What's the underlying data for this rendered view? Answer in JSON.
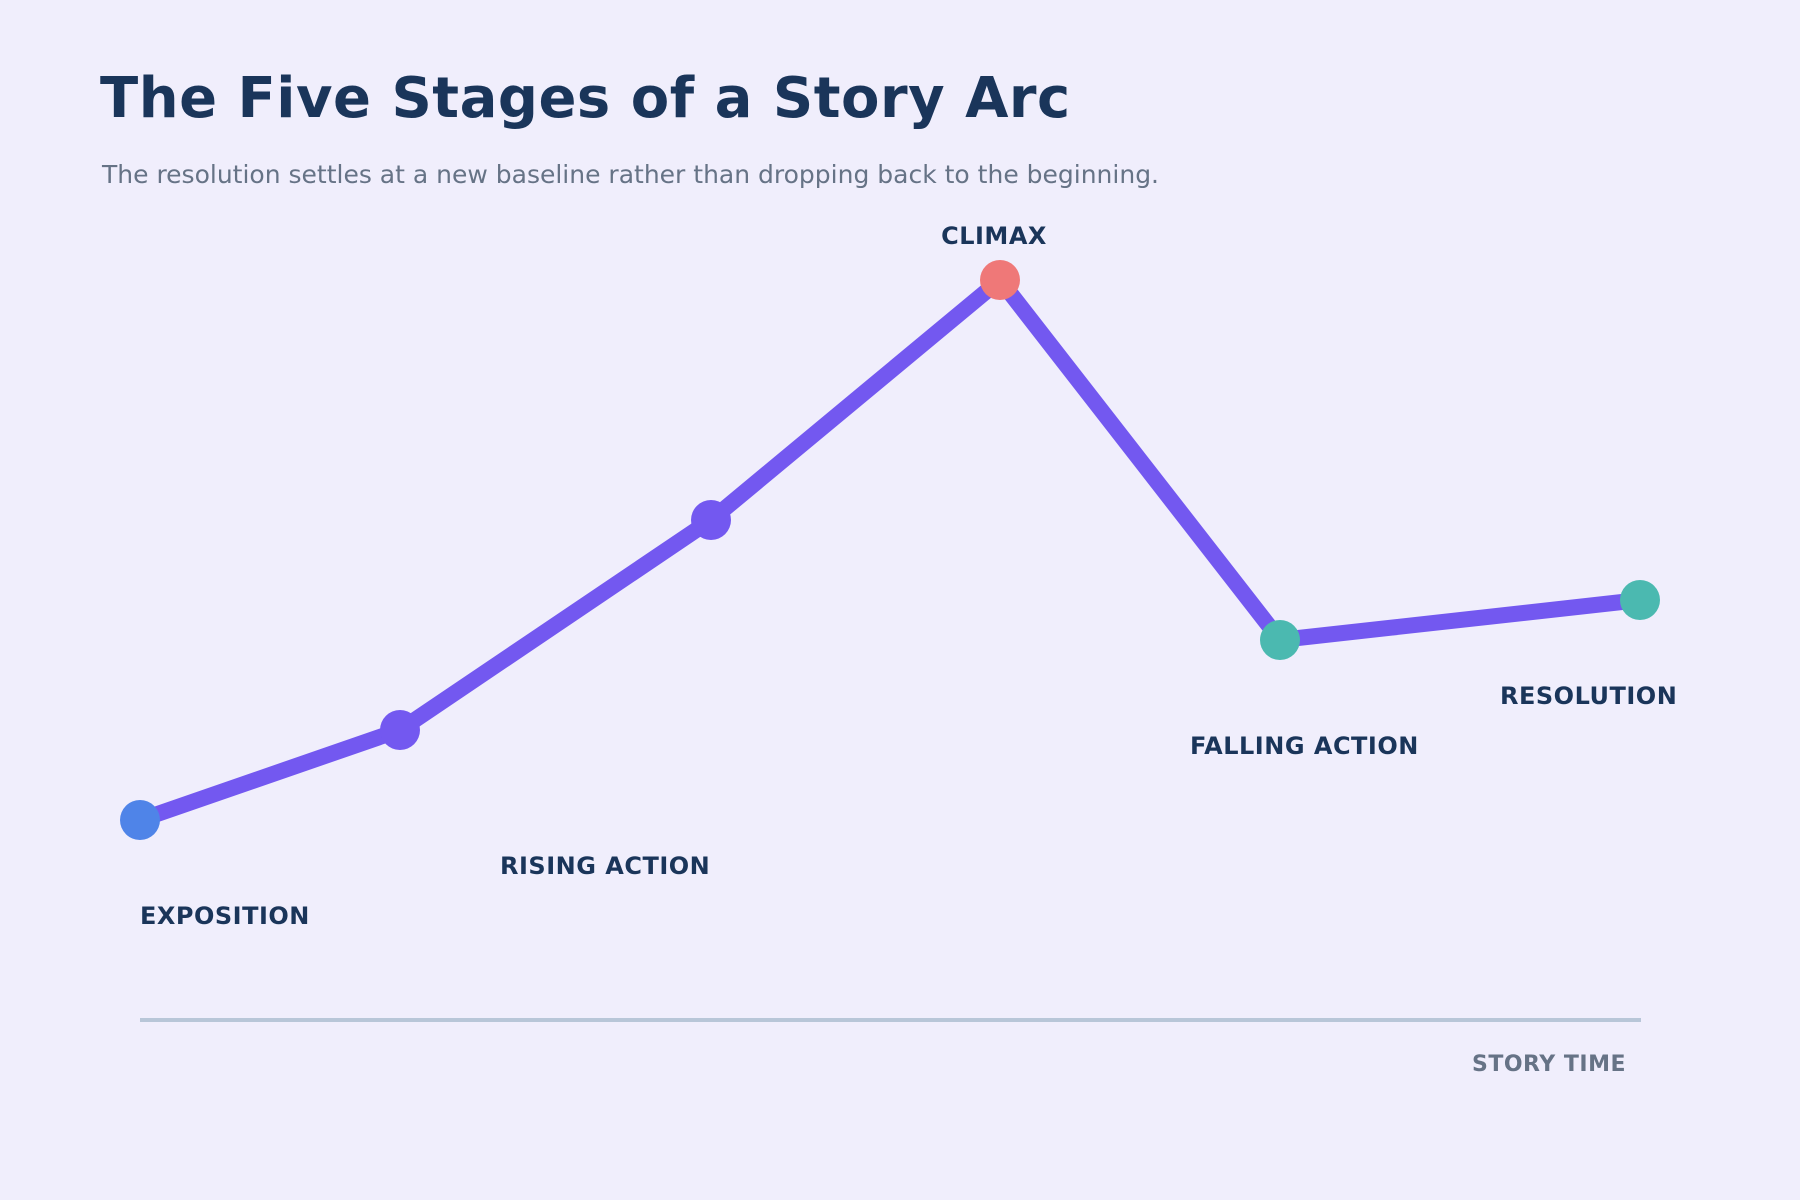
{
  "title": "The Five Stages of a Story Arc",
  "subtitle": "The resolution settles at a new baseline rather than dropping back to the beginning.",
  "axis": {
    "x_label": "STORY TIME"
  },
  "colors": {
    "line": "#7358f0",
    "start_point": "#4f84e8",
    "climax_point": "#ef7878",
    "end_points": "#4bb9b0",
    "text": "#1a355a",
    "muted_text": "#667386",
    "axis": "#b8c6d8",
    "background": "#f0eefc"
  },
  "stages": [
    {
      "label": "EXPOSITION"
    },
    {
      "label": "RISING ACTION"
    },
    {
      "label": "CLIMAX"
    },
    {
      "label": "FALLING ACTION"
    },
    {
      "label": "RESOLUTION"
    }
  ]
}
